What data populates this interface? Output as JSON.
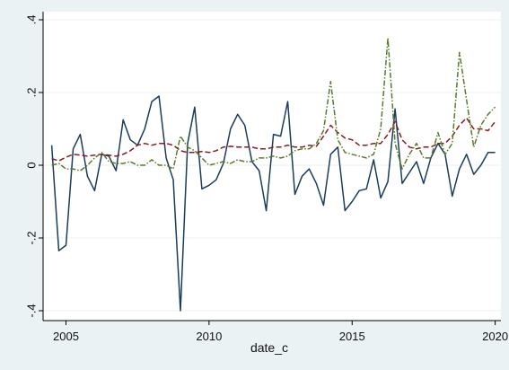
{
  "chart_data": {
    "type": "line",
    "xlabel": "date_c",
    "ylabel": "",
    "xlim": [
      2004.2,
      2020.2
    ],
    "ylim": [
      -0.4,
      0.4
    ],
    "x_ticks": [
      2005,
      2010,
      2015,
      2020
    ],
    "x_tick_labels": [
      "2005",
      "2010",
      "2015",
      "2020"
    ],
    "y_ticks": [
      -0.4,
      -0.2,
      0,
      0.2,
      0.4
    ],
    "y_tick_labels": [
      "-.4",
      "-.2",
      "0",
      ".2",
      ".4"
    ],
    "grid": true,
    "legend": "none",
    "colors": {
      "background": "#eaf2f3",
      "plot_background": "#ffffff",
      "grid": "#eaf2f3",
      "series_1": "#1a3c5e",
      "series_2": "#8b1a1a",
      "series_3": "#5a7a2a"
    },
    "series": [
      {
        "style": "solid",
        "color": "#1a3c5e",
        "x": [
          2004.5,
          2004.75,
          2005.0,
          2005.25,
          2005.5,
          2005.75,
          2006.0,
          2006.25,
          2006.5,
          2006.75,
          2007.0,
          2007.25,
          2007.5,
          2007.75,
          2008.0,
          2008.25,
          2008.5,
          2008.75,
          2009.0,
          2009.25,
          2009.5,
          2009.75,
          2010.0,
          2010.25,
          2010.5,
          2010.75,
          2011.0,
          2011.25,
          2011.5,
          2011.75,
          2012.0,
          2012.25,
          2012.5,
          2012.75,
          2013.0,
          2013.25,
          2013.5,
          2013.75,
          2014.0,
          2014.25,
          2014.5,
          2014.75,
          2015.0,
          2015.25,
          2015.5,
          2015.75,
          2016.0,
          2016.25,
          2016.5,
          2016.75,
          2017.0,
          2017.25,
          2017.5,
          2017.75,
          2018.0,
          2018.25,
          2018.5,
          2018.75,
          2019.0,
          2019.25,
          2019.5,
          2019.75,
          2020.0
        ],
        "y": [
          0.055,
          -0.235,
          -0.22,
          0.045,
          0.085,
          -0.03,
          -0.07,
          0.03,
          0.025,
          -0.015,
          0.125,
          0.07,
          0.055,
          0.1,
          0.175,
          0.19,
          0.02,
          -0.04,
          -0.4,
          0.06,
          0.16,
          -0.065,
          -0.055,
          -0.04,
          0.005,
          0.1,
          0.14,
          0.11,
          0.01,
          -0.015,
          -0.125,
          0.085,
          0.08,
          0.175,
          -0.08,
          -0.03,
          -0.01,
          -0.05,
          -0.11,
          0.03,
          0.05,
          -0.125,
          -0.1,
          -0.07,
          -0.065,
          0.015,
          -0.09,
          -0.045,
          0.155,
          -0.05,
          -0.02,
          0.01,
          -0.05,
          0.02,
          0.06,
          0.03,
          -0.085,
          -0.01,
          0.03,
          -0.025,
          0.0,
          0.035,
          0.035
        ]
      },
      {
        "style": "dashed",
        "color": "#8b1a1a",
        "x": [
          2004.5,
          2004.75,
          2005.0,
          2005.25,
          2005.5,
          2005.75,
          2006.0,
          2006.25,
          2006.5,
          2006.75,
          2007.0,
          2007.25,
          2007.5,
          2007.75,
          2008.0,
          2008.25,
          2008.5,
          2008.75,
          2009.0,
          2009.25,
          2009.5,
          2009.75,
          2010.0,
          2010.25,
          2010.5,
          2010.75,
          2011.0,
          2011.25,
          2011.5,
          2011.75,
          2012.0,
          2012.25,
          2012.5,
          2012.75,
          2013.0,
          2013.25,
          2013.5,
          2013.75,
          2014.0,
          2014.25,
          2014.5,
          2014.75,
          2015.0,
          2015.25,
          2015.5,
          2015.75,
          2016.0,
          2016.25,
          2016.5,
          2016.75,
          2017.0,
          2017.25,
          2017.5,
          2017.75,
          2018.0,
          2018.25,
          2018.5,
          2018.75,
          2019.0,
          2019.25,
          2019.5,
          2019.75,
          2020.0
        ],
        "y": [
          0.018,
          0.012,
          0.022,
          0.03,
          0.028,
          0.025,
          0.028,
          0.03,
          0.028,
          0.025,
          0.03,
          0.04,
          0.055,
          0.06,
          0.055,
          0.06,
          0.06,
          0.055,
          0.04,
          0.035,
          0.035,
          0.038,
          0.035,
          0.04,
          0.05,
          0.052,
          0.05,
          0.05,
          0.05,
          0.045,
          0.045,
          0.05,
          0.05,
          0.055,
          0.05,
          0.05,
          0.055,
          0.052,
          0.08,
          0.11,
          0.09,
          0.075,
          0.07,
          0.055,
          0.055,
          0.06,
          0.06,
          0.085,
          0.12,
          0.07,
          0.05,
          0.045,
          0.05,
          0.05,
          0.06,
          0.06,
          0.08,
          0.11,
          0.13,
          0.1,
          0.1,
          0.095,
          0.12
        ]
      },
      {
        "style": "dash-dot",
        "color": "#5a7a2a",
        "x": [
          2004.5,
          2004.75,
          2005.0,
          2005.25,
          2005.5,
          2005.75,
          2006.0,
          2006.25,
          2006.5,
          2006.75,
          2007.0,
          2007.25,
          2007.5,
          2007.75,
          2008.0,
          2008.25,
          2008.5,
          2008.75,
          2009.0,
          2009.25,
          2009.5,
          2009.75,
          2010.0,
          2010.25,
          2010.5,
          2010.75,
          2011.0,
          2011.25,
          2011.5,
          2011.75,
          2012.0,
          2012.25,
          2012.5,
          2012.75,
          2013.0,
          2013.25,
          2013.5,
          2013.75,
          2014.0,
          2014.25,
          2014.5,
          2014.75,
          2015.0,
          2015.25,
          2015.5,
          2015.75,
          2016.0,
          2016.25,
          2016.5,
          2016.75,
          2017.0,
          2017.25,
          2017.5,
          2017.75,
          2018.0,
          2018.25,
          2018.5,
          2018.75,
          2019.0,
          2019.25,
          2019.5,
          2019.75,
          2020.0
        ],
        "y": [
          0.0,
          0.005,
          -0.01,
          -0.01,
          -0.015,
          0.0,
          0.02,
          0.035,
          0.01,
          0.005,
          0.005,
          0.01,
          0.0,
          0.0,
          0.015,
          0.0,
          0.0,
          -0.01,
          0.08,
          0.05,
          0.04,
          0.02,
          0.0,
          0.005,
          0.01,
          0.005,
          0.015,
          0.01,
          0.01,
          0.02,
          0.02,
          0.025,
          0.02,
          0.025,
          0.04,
          0.045,
          0.045,
          0.06,
          0.095,
          0.23,
          0.07,
          0.035,
          0.03,
          0.025,
          0.02,
          0.03,
          0.1,
          0.35,
          0.06,
          -0.01,
          0.03,
          0.06,
          0.02,
          0.02,
          0.09,
          0.03,
          0.06,
          0.31,
          0.18,
          0.05,
          0.11,
          0.14,
          0.16
        ]
      }
    ]
  }
}
